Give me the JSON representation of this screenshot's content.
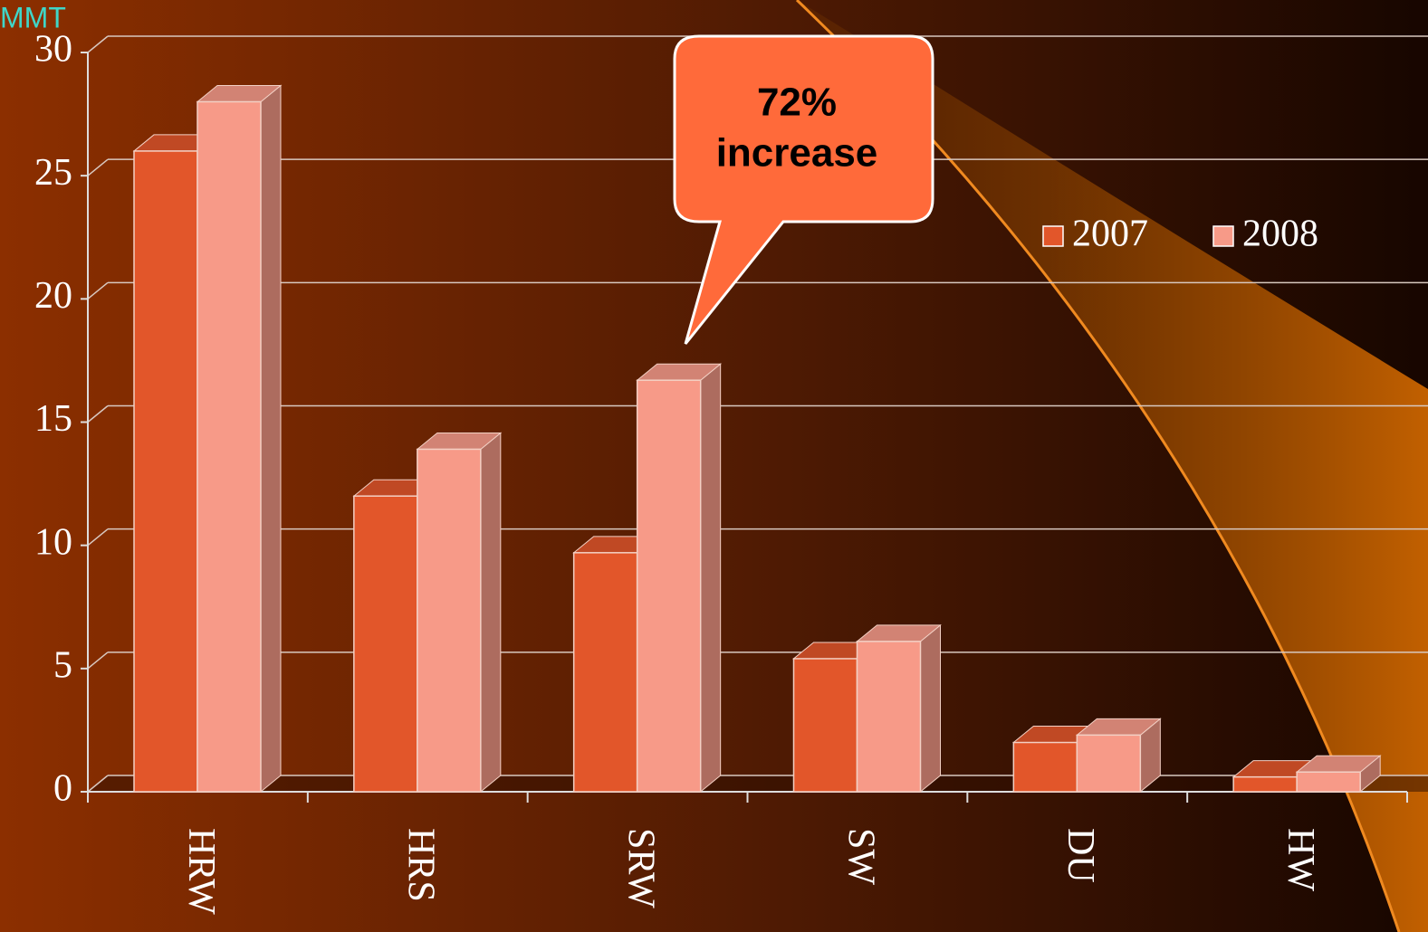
{
  "chart_data": {
    "type": "bar",
    "y_label": "MMT",
    "categories": [
      "HRW",
      "HRS",
      "SRW",
      "SW",
      "DU",
      "HW"
    ],
    "series": [
      {
        "name": "2007",
        "color": "#e2562a",
        "values": [
          26,
          12,
          9.7,
          5.4,
          2.0,
          0.6
        ]
      },
      {
        "name": "2008",
        "color": "#f79a88",
        "values": [
          28,
          13.9,
          16.7,
          6.1,
          2.3,
          0.8
        ]
      }
    ],
    "ylim": [
      0,
      30
    ],
    "yticks": [
      0,
      5,
      10,
      15,
      20,
      25,
      30
    ],
    "grid": true,
    "legend": "upper right",
    "annotations": [
      "72%",
      "increase"
    ]
  }
}
